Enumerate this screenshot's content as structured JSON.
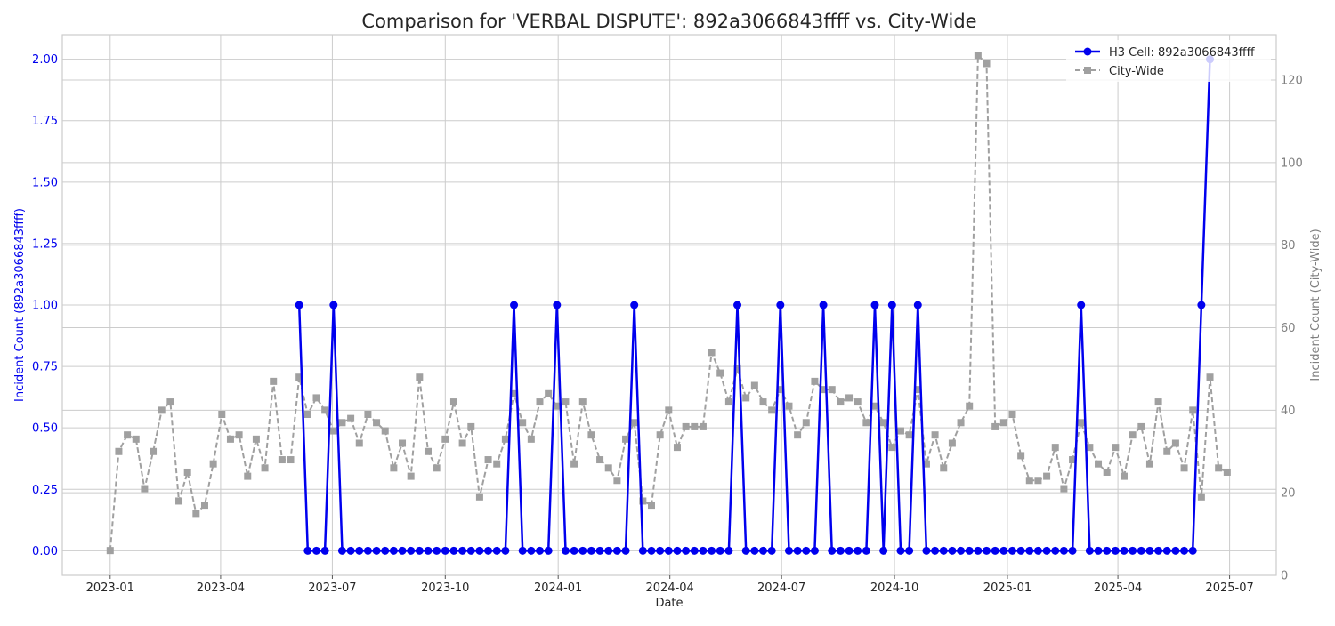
{
  "chart_data": {
    "type": "line",
    "title": "Comparison for 'VERBAL DISPUTE': 892a3066843ffff vs. City-Wide",
    "xlabel": "Date",
    "ylabel_left": "Incident Count (892a3066843ffff)",
    "ylabel_right": "Incident Count (City-Wide)",
    "x_ticks": [
      "2023-01",
      "2023-04",
      "2023-07",
      "2023-10",
      "2024-01",
      "2024-04",
      "2024-07",
      "2024-10",
      "2025-01",
      "2025-04",
      "2025-07"
    ],
    "y_left_ticks": [
      "0.00",
      "0.25",
      "0.50",
      "0.75",
      "1.00",
      "1.25",
      "1.50",
      "1.75",
      "2.00"
    ],
    "y_right_ticks": [
      "0",
      "20",
      "40",
      "60",
      "80",
      "100",
      "120"
    ],
    "xlim": [
      "2022-11-23",
      "2025-08-08"
    ],
    "ylim_left": [
      -0.1,
      2.1
    ],
    "ylim_right": [
      0,
      131
    ],
    "grid": true,
    "legend_position": "top-right",
    "colors": {
      "cell": "#0000ee",
      "city": "#a0a0a0",
      "left_axis_text": "#0000ee",
      "right_axis_text": "#7f7f7f"
    },
    "series": [
      {
        "name": "H3 Cell: 892a3066843ffff",
        "axis": "left",
        "style": "solid-circle",
        "points": [
          [
            "2023-06-04",
            1
          ],
          [
            "2023-06-11",
            0
          ],
          [
            "2023-06-18",
            0
          ],
          [
            "2023-06-25",
            0
          ],
          [
            "2023-07-02",
            1
          ],
          [
            "2023-07-09",
            0
          ],
          [
            "2023-07-16",
            0
          ],
          [
            "2023-07-23",
            0
          ],
          [
            "2023-07-30",
            0
          ],
          [
            "2023-08-06",
            0
          ],
          [
            "2023-08-13",
            0
          ],
          [
            "2023-08-20",
            0
          ],
          [
            "2023-08-27",
            0
          ],
          [
            "2023-09-03",
            0
          ],
          [
            "2023-09-10",
            0
          ],
          [
            "2023-09-17",
            0
          ],
          [
            "2023-09-24",
            0
          ],
          [
            "2023-10-01",
            0
          ],
          [
            "2023-10-08",
            0
          ],
          [
            "2023-10-15",
            0
          ],
          [
            "2023-10-22",
            0
          ],
          [
            "2023-10-29",
            0
          ],
          [
            "2023-11-05",
            0
          ],
          [
            "2023-11-12",
            0
          ],
          [
            "2023-11-19",
            0
          ],
          [
            "2023-11-26",
            1
          ],
          [
            "2023-12-03",
            0
          ],
          [
            "2023-12-10",
            0
          ],
          [
            "2023-12-17",
            0
          ],
          [
            "2023-12-24",
            0
          ],
          [
            "2023-12-31",
            1
          ],
          [
            "2024-01-07",
            0
          ],
          [
            "2024-01-14",
            0
          ],
          [
            "2024-01-21",
            0
          ],
          [
            "2024-01-28",
            0
          ],
          [
            "2024-02-04",
            0
          ],
          [
            "2024-02-11",
            0
          ],
          [
            "2024-02-18",
            0
          ],
          [
            "2024-02-25",
            0
          ],
          [
            "2024-03-03",
            1
          ],
          [
            "2024-03-10",
            0
          ],
          [
            "2024-03-17",
            0
          ],
          [
            "2024-03-24",
            0
          ],
          [
            "2024-03-31",
            0
          ],
          [
            "2024-04-07",
            0
          ],
          [
            "2024-04-14",
            0
          ],
          [
            "2024-04-21",
            0
          ],
          [
            "2024-04-28",
            0
          ],
          [
            "2024-05-05",
            0
          ],
          [
            "2024-05-12",
            0
          ],
          [
            "2024-05-19",
            0
          ],
          [
            "2024-05-26",
            1
          ],
          [
            "2024-06-02",
            0
          ],
          [
            "2024-06-09",
            0
          ],
          [
            "2024-06-16",
            0
          ],
          [
            "2024-06-23",
            0
          ],
          [
            "2024-06-30",
            1
          ],
          [
            "2024-07-07",
            0
          ],
          [
            "2024-07-14",
            0
          ],
          [
            "2024-07-21",
            0
          ],
          [
            "2024-07-28",
            0
          ],
          [
            "2024-08-04",
            1
          ],
          [
            "2024-08-11",
            0
          ],
          [
            "2024-08-18",
            0
          ],
          [
            "2024-08-25",
            0
          ],
          [
            "2024-09-01",
            0
          ],
          [
            "2024-09-08",
            0
          ],
          [
            "2024-09-15",
            1
          ],
          [
            "2024-09-22",
            0
          ],
          [
            "2024-09-29",
            1
          ],
          [
            "2024-10-06",
            0
          ],
          [
            "2024-10-13",
            0
          ],
          [
            "2024-10-20",
            1
          ],
          [
            "2024-10-27",
            0
          ],
          [
            "2024-11-03",
            0
          ],
          [
            "2024-11-10",
            0
          ],
          [
            "2024-11-17",
            0
          ],
          [
            "2024-11-24",
            0
          ],
          [
            "2024-12-01",
            0
          ],
          [
            "2024-12-08",
            0
          ],
          [
            "2024-12-15",
            0
          ],
          [
            "2024-12-22",
            0
          ],
          [
            "2024-12-29",
            0
          ],
          [
            "2025-01-05",
            0
          ],
          [
            "2025-01-12",
            0
          ],
          [
            "2025-01-19",
            0
          ],
          [
            "2025-01-26",
            0
          ],
          [
            "2025-02-02",
            0
          ],
          [
            "2025-02-09",
            0
          ],
          [
            "2025-02-16",
            0
          ],
          [
            "2025-02-23",
            0
          ],
          [
            "2025-03-02",
            1
          ],
          [
            "2025-03-09",
            0
          ],
          [
            "2025-03-16",
            0
          ],
          [
            "2025-03-23",
            0
          ],
          [
            "2025-03-30",
            0
          ],
          [
            "2025-04-06",
            0
          ],
          [
            "2025-04-13",
            0
          ],
          [
            "2025-04-20",
            0
          ],
          [
            "2025-04-27",
            0
          ],
          [
            "2025-05-04",
            0
          ],
          [
            "2025-05-11",
            0
          ],
          [
            "2025-05-18",
            0
          ],
          [
            "2025-05-25",
            0
          ],
          [
            "2025-06-01",
            0
          ],
          [
            "2025-06-08",
            1
          ],
          [
            "2025-06-15",
            2
          ]
        ]
      },
      {
        "name": "City-Wide",
        "axis": "right",
        "style": "dashed-square",
        "points": [
          [
            "2023-01-01",
            6
          ],
          [
            "2023-01-08",
            30
          ],
          [
            "2023-01-15",
            34
          ],
          [
            "2023-01-22",
            33
          ],
          [
            "2023-01-29",
            21
          ],
          [
            "2023-02-05",
            30
          ],
          [
            "2023-02-12",
            40
          ],
          [
            "2023-02-19",
            42
          ],
          [
            "2023-02-26",
            18
          ],
          [
            "2023-03-05",
            25
          ],
          [
            "2023-03-12",
            15
          ],
          [
            "2023-03-19",
            17
          ],
          [
            "2023-03-26",
            27
          ],
          [
            "2023-04-02",
            39
          ],
          [
            "2023-04-09",
            33
          ],
          [
            "2023-04-16",
            34
          ],
          [
            "2023-04-23",
            24
          ],
          [
            "2023-04-30",
            33
          ],
          [
            "2023-05-07",
            26
          ],
          [
            "2023-05-14",
            47
          ],
          [
            "2023-05-21",
            28
          ],
          [
            "2023-05-28",
            28
          ],
          [
            "2023-06-04",
            48
          ],
          [
            "2023-06-11",
            39
          ],
          [
            "2023-06-18",
            43
          ],
          [
            "2023-06-25",
            40
          ],
          [
            "2023-07-02",
            35
          ],
          [
            "2023-07-09",
            37
          ],
          [
            "2023-07-16",
            38
          ],
          [
            "2023-07-23",
            32
          ],
          [
            "2023-07-30",
            39
          ],
          [
            "2023-08-06",
            37
          ],
          [
            "2023-08-13",
            35
          ],
          [
            "2023-08-20",
            26
          ],
          [
            "2023-08-27",
            32
          ],
          [
            "2023-09-03",
            24
          ],
          [
            "2023-09-10",
            48
          ],
          [
            "2023-09-17",
            30
          ],
          [
            "2023-09-24",
            26
          ],
          [
            "2023-10-01",
            33
          ],
          [
            "2023-10-08",
            42
          ],
          [
            "2023-10-15",
            32
          ],
          [
            "2023-10-22",
            36
          ],
          [
            "2023-10-29",
            19
          ],
          [
            "2023-11-05",
            28
          ],
          [
            "2023-11-12",
            27
          ],
          [
            "2023-11-19",
            33
          ],
          [
            "2023-11-26",
            44
          ],
          [
            "2023-12-03",
            37
          ],
          [
            "2023-12-10",
            33
          ],
          [
            "2023-12-17",
            42
          ],
          [
            "2023-12-24",
            44
          ],
          [
            "2023-12-31",
            41
          ],
          [
            "2024-01-07",
            42
          ],
          [
            "2024-01-14",
            27
          ],
          [
            "2024-01-21",
            42
          ],
          [
            "2024-01-28",
            34
          ],
          [
            "2024-02-04",
            28
          ],
          [
            "2024-02-11",
            26
          ],
          [
            "2024-02-18",
            23
          ],
          [
            "2024-02-25",
            33
          ],
          [
            "2024-03-03",
            37
          ],
          [
            "2024-03-10",
            18
          ],
          [
            "2024-03-17",
            17
          ],
          [
            "2024-03-24",
            34
          ],
          [
            "2024-03-31",
            40
          ],
          [
            "2024-04-07",
            31
          ],
          [
            "2024-04-14",
            36
          ],
          [
            "2024-04-21",
            36
          ],
          [
            "2024-04-28",
            36
          ],
          [
            "2024-05-05",
            54
          ],
          [
            "2024-05-12",
            49
          ],
          [
            "2024-05-19",
            42
          ],
          [
            "2024-05-26",
            50
          ],
          [
            "2024-06-02",
            43
          ],
          [
            "2024-06-09",
            46
          ],
          [
            "2024-06-16",
            42
          ],
          [
            "2024-06-23",
            40
          ],
          [
            "2024-06-30",
            45
          ],
          [
            "2024-07-07",
            41
          ],
          [
            "2024-07-14",
            34
          ],
          [
            "2024-07-21",
            37
          ],
          [
            "2024-07-28",
            47
          ],
          [
            "2024-08-04",
            45
          ],
          [
            "2024-08-11",
            45
          ],
          [
            "2024-08-18",
            42
          ],
          [
            "2024-08-25",
            43
          ],
          [
            "2024-09-01",
            42
          ],
          [
            "2024-09-08",
            37
          ],
          [
            "2024-09-15",
            41
          ],
          [
            "2024-09-22",
            37
          ],
          [
            "2024-09-29",
            31
          ],
          [
            "2024-10-06",
            35
          ],
          [
            "2024-10-13",
            34
          ],
          [
            "2024-10-20",
            45
          ],
          [
            "2024-10-27",
            27
          ],
          [
            "2024-11-03",
            34
          ],
          [
            "2024-11-10",
            26
          ],
          [
            "2024-11-17",
            32
          ],
          [
            "2024-11-24",
            37
          ],
          [
            "2024-12-01",
            41
          ],
          [
            "2024-12-08",
            126
          ],
          [
            "2024-12-15",
            124
          ],
          [
            "2024-12-22",
            36
          ],
          [
            "2024-12-29",
            37
          ],
          [
            "2025-01-05",
            39
          ],
          [
            "2025-01-12",
            29
          ],
          [
            "2025-01-19",
            23
          ],
          [
            "2025-01-26",
            23
          ],
          [
            "2025-02-02",
            24
          ],
          [
            "2025-02-09",
            31
          ],
          [
            "2025-02-16",
            21
          ],
          [
            "2025-02-23",
            28
          ],
          [
            "2025-03-02",
            37
          ],
          [
            "2025-03-09",
            31
          ],
          [
            "2025-03-16",
            27
          ],
          [
            "2025-03-23",
            25
          ],
          [
            "2025-03-30",
            31
          ],
          [
            "2025-04-06",
            24
          ],
          [
            "2025-04-13",
            34
          ],
          [
            "2025-04-20",
            36
          ],
          [
            "2025-04-27",
            27
          ],
          [
            "2025-05-04",
            42
          ],
          [
            "2025-05-11",
            30
          ],
          [
            "2025-05-18",
            32
          ],
          [
            "2025-05-25",
            26
          ],
          [
            "2025-06-01",
            40
          ],
          [
            "2025-06-08",
            19
          ],
          [
            "2025-06-15",
            48
          ],
          [
            "2025-06-22",
            26
          ],
          [
            "2025-06-29",
            25
          ]
        ]
      }
    ]
  }
}
